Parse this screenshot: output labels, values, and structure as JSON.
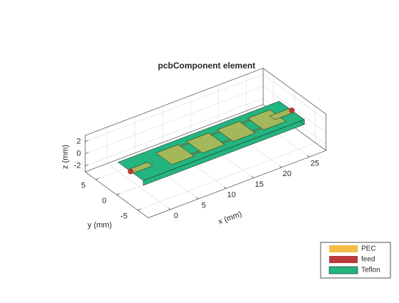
{
  "chart_data": {
    "type": "pcb3d",
    "title": "pcbComponent element",
    "xlabel": "x (mm)",
    "ylabel": "y (mm)",
    "zlabel": "z (mm)",
    "xlim": [
      -4,
      28
    ],
    "ylim": [
      -7.5,
      7.5
    ],
    "zlim": [
      -3,
      3
    ],
    "xticks": [
      0,
      5,
      10,
      15,
      20,
      25
    ],
    "yticks": [
      -5,
      0,
      5
    ],
    "zticks": [
      -2,
      0,
      2
    ],
    "grid": true,
    "series": [
      {
        "name": "PEC",
        "color": "#f5bd45"
      },
      {
        "name": "feed",
        "color": "#b83a3a"
      },
      {
        "name": "Teflon",
        "color": "#24b47e"
      }
    ]
  }
}
